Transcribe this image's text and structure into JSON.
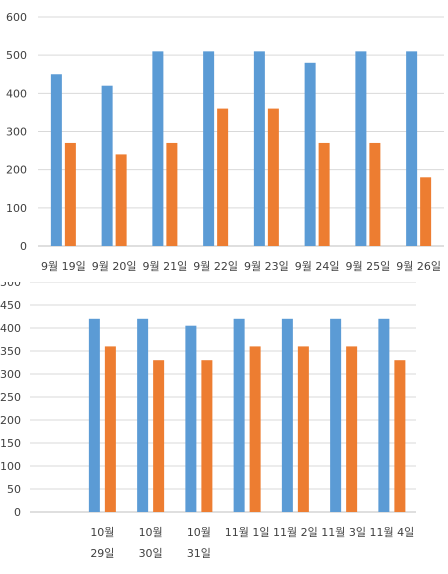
{
  "chart_data": [
    {
      "type": "bar",
      "title": "",
      "xlabel": "",
      "ylabel": "",
      "ylim": [
        0,
        600
      ],
      "yticks": [
        0,
        100,
        200,
        300,
        400,
        500,
        600
      ],
      "grid": true,
      "legend": "none",
      "categories": [
        "9월 19일",
        "9월 20일",
        "9월 21일",
        "9월 22일",
        "9월 23일",
        "9월 24일",
        "9월 25일",
        "9월 26일"
      ],
      "series": [
        {
          "color": "#5b9bd5",
          "values": [
            450,
            420,
            510,
            510,
            510,
            480,
            510,
            510
          ]
        },
        {
          "color": "#ed7d31",
          "values": [
            270,
            240,
            270,
            360,
            360,
            270,
            270,
            180
          ]
        }
      ]
    },
    {
      "type": "bar",
      "title": "",
      "xlabel": "",
      "ylabel": "",
      "ylim": [
        0,
        500
      ],
      "yticks": [
        0,
        50,
        100,
        150,
        200,
        250,
        300,
        350,
        400,
        450,
        500
      ],
      "grid": true,
      "legend": "none",
      "categories": [
        "",
        "10월 29일",
        "10월 30일",
        "10월 31일",
        "11월 1일",
        "11월 2일",
        "11월 3일",
        "11월 4일"
      ],
      "series": [
        {
          "color": "#5b9bd5",
          "values": [
            null,
            420,
            420,
            405,
            420,
            420,
            420,
            420
          ]
        },
        {
          "color": "#ed7d31",
          "values": [
            null,
            360,
            330,
            330,
            360,
            360,
            360,
            330
          ]
        }
      ]
    }
  ]
}
